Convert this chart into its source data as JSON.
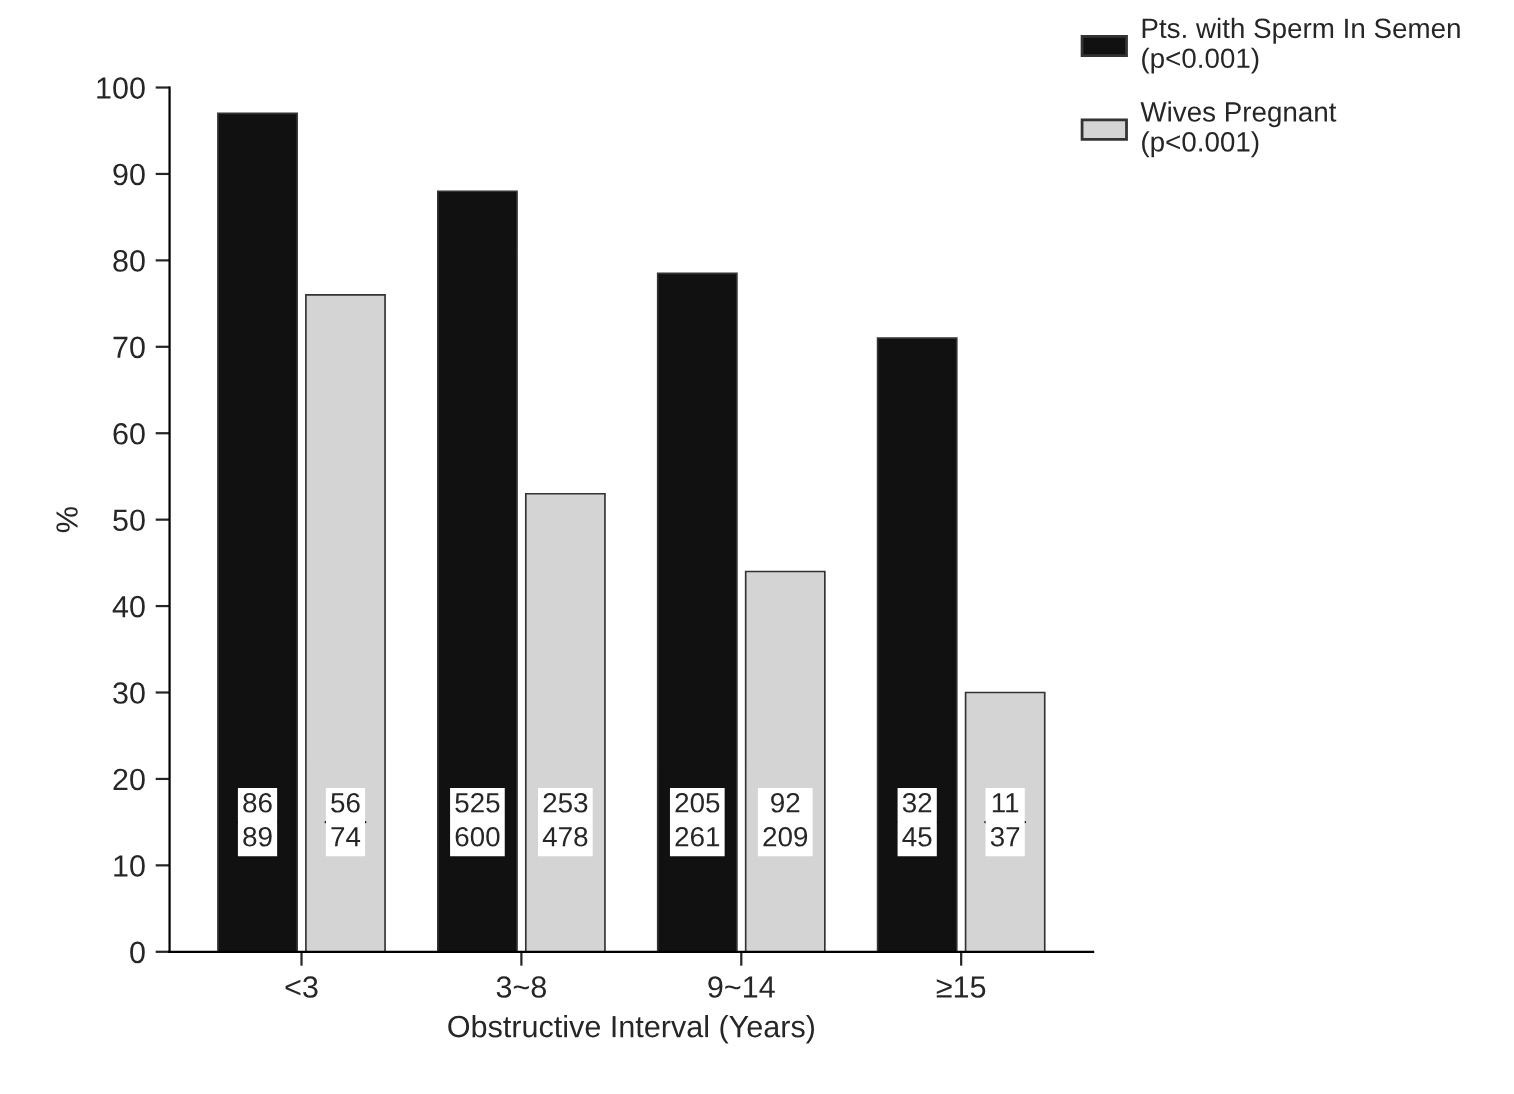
{
  "chart_data": {
    "type": "bar",
    "xlabel": "Obstructive Interval (Years)",
    "ylabel": "%",
    "categories": [
      "<3",
      "3~8",
      "9~14",
      "≥15"
    ],
    "series": [
      {
        "name": "Pts. with Sperm In Semen\n(p<0.001)",
        "color": "#111111",
        "values": [
          97,
          88,
          78.5,
          71
        ]
      },
      {
        "name": "Wives Pregnant\n(p<0.001)",
        "color": "#d4d4d4",
        "values": [
          76,
          53,
          44,
          30
        ]
      }
    ],
    "annotations": [
      "86\n89",
      "56\n74",
      "525\n600",
      "253\n478",
      "205\n261",
      "92\n209",
      "32\n45",
      "11\n37"
    ],
    "ylim": [
      0,
      100
    ],
    "yticks": [
      0,
      10,
      20,
      30,
      40,
      50,
      60,
      70,
      80,
      90,
      100
    ],
    "grid": false,
    "legend": "top right"
  }
}
